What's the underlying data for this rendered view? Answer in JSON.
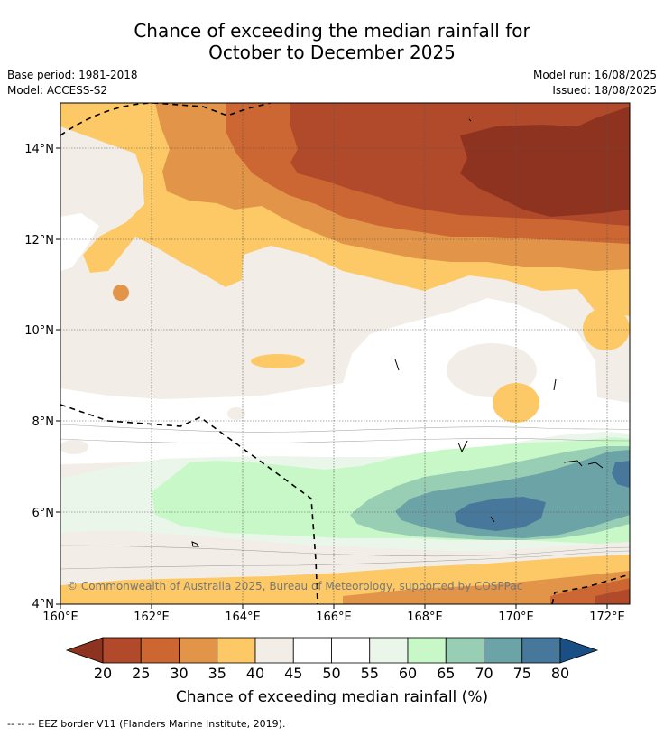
{
  "title_line1": "Chance of exceeding the median rainfall for",
  "title_line2": "October to December 2025",
  "base_period": "Base period: 1981-2018",
  "model": "Model: ACCESS-S2",
  "model_run": "Model run: 16/08/2025",
  "issued": "Issued: 18/08/2025",
  "credit": "© Commonwealth of Australia 2025, Bureau of Meteorology, supported by COSPPac",
  "x_ticks": [
    "160°E",
    "162°E",
    "164°E",
    "166°E",
    "168°E",
    "170°E",
    "172°E"
  ],
  "y_ticks": [
    "14°N",
    "12°N",
    "10°N",
    "8°N",
    "6°N",
    "4°N"
  ],
  "colorbar": {
    "ticks": [
      "20",
      "25",
      "30",
      "35",
      "40",
      "45",
      "50",
      "55",
      "60",
      "65",
      "70",
      "75",
      "80"
    ],
    "label": "Chance of exceeding median rainfall (%)",
    "colors": [
      "#8e3320",
      "#b04a2a",
      "#cc6633",
      "#e29548",
      "#fdc966",
      "#f2eee7",
      "#ffffff",
      "#ffffff",
      "#eaf6ea",
      "#c8f8c8",
      "#98ceb4",
      "#6ca3a6",
      "#47779a",
      "#1a4f86"
    ]
  },
  "footer": "--  --  -- EEZ border V11 (Flanders Marine Institute, 2019)."
}
